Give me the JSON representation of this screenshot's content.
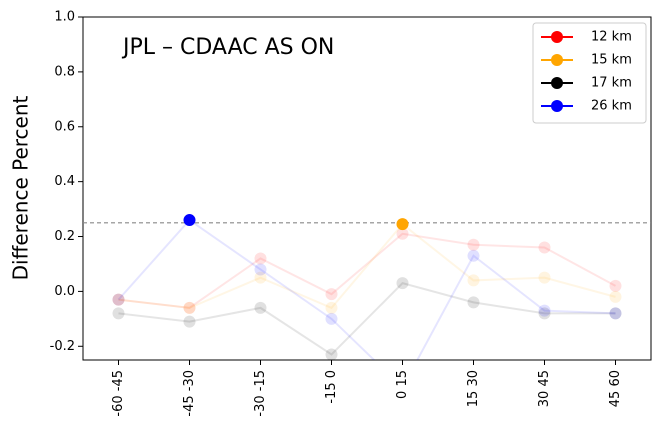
{
  "chart_data": {
    "type": "line",
    "title": "JPL – CDAAC AS ON",
    "y_label": "Difference Percent",
    "categories": [
      "-60 -45",
      "-45 -30",
      "-30 -15",
      "-15  0",
      "0  15",
      "15  30",
      "30  45",
      "45  60"
    ],
    "series": [
      {
        "name": "12 km",
        "color": "#ff0000",
        "values": [
          -0.03,
          -0.06,
          0.12,
          -0.01,
          0.21,
          0.17,
          0.16,
          0.02
        ]
      },
      {
        "name": "15 km",
        "color": "#ffa500",
        "values": [
          -0.03,
          -0.06,
          0.05,
          -0.06,
          0.245,
          0.04,
          0.05,
          -0.02
        ]
      },
      {
        "name": "17 km",
        "color": "#000000",
        "values": [
          -0.08,
          -0.11,
          -0.06,
          -0.23,
          0.03,
          -0.04,
          -0.08,
          -0.08
        ]
      },
      {
        "name": "26 km",
        "color": "#0000ff",
        "values": [
          -0.03,
          0.26,
          0.08,
          -0.1,
          -0.35,
          0.13,
          -0.07,
          -0.08
        ]
      }
    ],
    "threshold": 0.25,
    "ylim": [
      -0.25,
      1.0
    ],
    "yticks": [
      -0.2,
      {
        "value": 0,
        "label": "0.0"
      },
      0.2,
      0.4,
      0.6,
      0.8,
      {
        "value": 1,
        "label": "1.0"
      }
    ],
    "legend": "upper right"
  }
}
